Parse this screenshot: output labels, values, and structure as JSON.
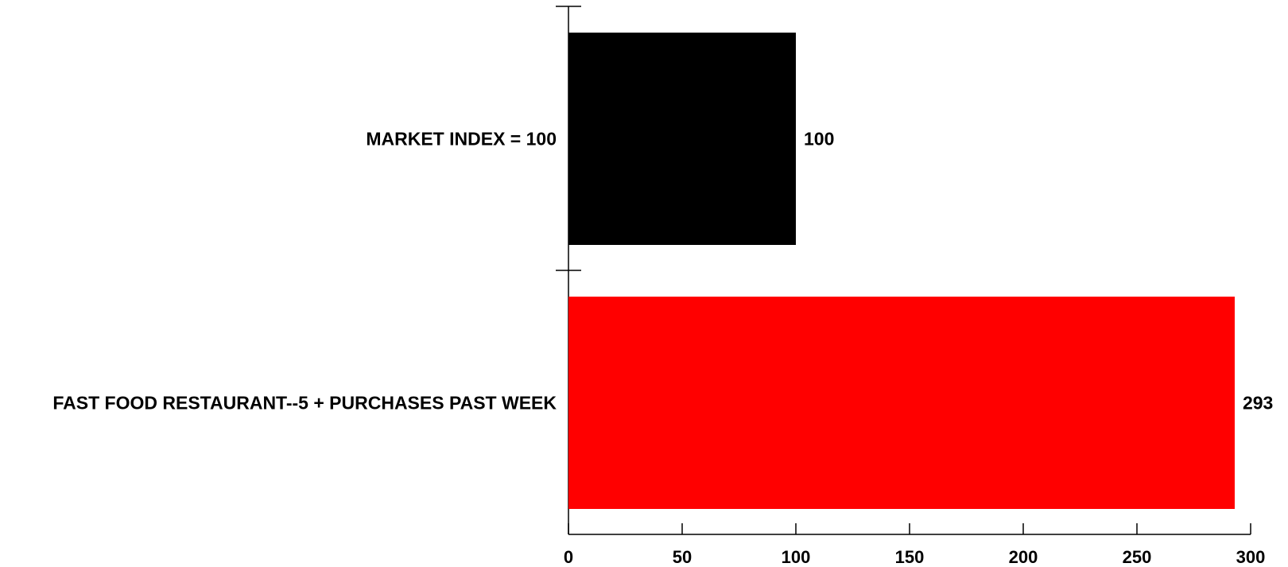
{
  "chart_data": {
    "type": "bar",
    "orientation": "horizontal",
    "categories": [
      "MARKET INDEX = 100",
      "FAST FOOD RESTAURANT--5 + PURCHASES PAST WEEK"
    ],
    "values": [
      100,
      293
    ],
    "data_labels": [
      "100",
      "293"
    ],
    "bar_colors": [
      "#000000",
      "#ff0000"
    ],
    "xlim": [
      0,
      300
    ],
    "xticks": [
      0,
      50,
      100,
      150,
      200,
      250,
      300
    ],
    "title": "",
    "xlabel": "",
    "ylabel": "",
    "grid": false,
    "legend": "none"
  }
}
